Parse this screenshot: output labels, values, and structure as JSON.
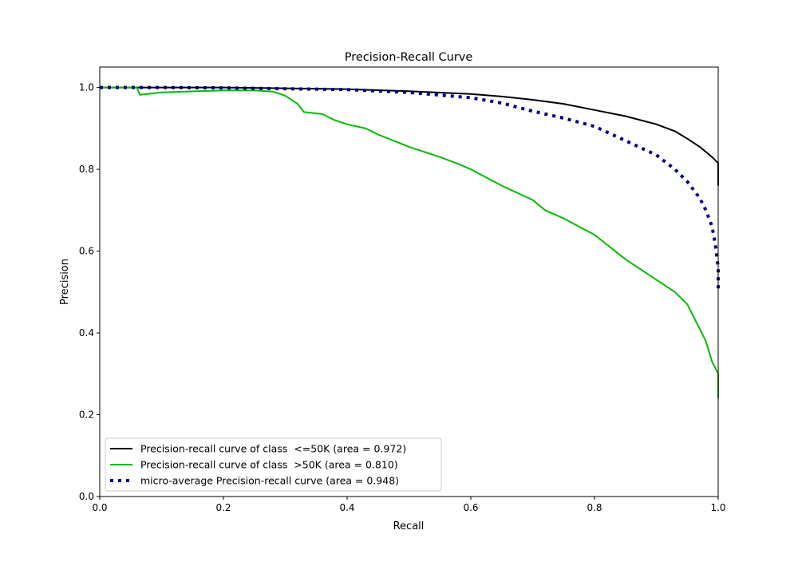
{
  "chart_data": {
    "type": "line",
    "title": "Precision-Recall Curve",
    "xlabel": "Recall",
    "ylabel": "Precision",
    "xlim": [
      0,
      1.0
    ],
    "ylim": [
      0,
      1.05
    ],
    "xticks": [
      "0.0",
      "0.2",
      "0.4",
      "0.6",
      "0.8",
      "1.0"
    ],
    "yticks": [
      "0.0",
      "0.2",
      "0.4",
      "0.6",
      "0.8",
      "1.0"
    ],
    "grid": false,
    "legend_position": "lower-left",
    "series": [
      {
        "name": "Precision-recall curve of class  <=50K (area = 0.972)",
        "color": "#000000",
        "style": "solid",
        "x": [
          0,
          0.1,
          0.2,
          0.3,
          0.4,
          0.5,
          0.6,
          0.65,
          0.7,
          0.75,
          0.8,
          0.85,
          0.9,
          0.93,
          0.95,
          0.97,
          0.99,
          1.0,
          1.0
        ],
        "y": [
          1.0,
          1.0,
          1.0,
          0.998,
          0.996,
          0.991,
          0.984,
          0.978,
          0.97,
          0.96,
          0.945,
          0.93,
          0.91,
          0.893,
          0.875,
          0.855,
          0.83,
          0.815,
          0.76
        ]
      },
      {
        "name": "Precision-recall curve of class  >50K (area = 0.810)",
        "color": "#00bb00",
        "style": "solid",
        "x": [
          0,
          0.06,
          0.065,
          0.1,
          0.2,
          0.25,
          0.28,
          0.3,
          0.32,
          0.33,
          0.36,
          0.38,
          0.4,
          0.43,
          0.45,
          0.5,
          0.55,
          0.58,
          0.6,
          0.65,
          0.7,
          0.72,
          0.75,
          0.8,
          0.85,
          0.9,
          0.93,
          0.95,
          0.97,
          0.98,
          0.99,
          1.0,
          1.0
        ],
        "y": [
          1.0,
          1.0,
          0.982,
          0.988,
          0.993,
          0.993,
          0.99,
          0.98,
          0.96,
          0.94,
          0.935,
          0.92,
          0.91,
          0.9,
          0.885,
          0.855,
          0.83,
          0.813,
          0.8,
          0.76,
          0.725,
          0.7,
          0.68,
          0.64,
          0.58,
          0.53,
          0.5,
          0.47,
          0.41,
          0.38,
          0.33,
          0.3,
          0.24
        ]
      },
      {
        "name": "micro-average Precision-recall curve (area = 0.948)",
        "color": "#000080",
        "style": "dotted",
        "x": [
          0,
          0.1,
          0.2,
          0.3,
          0.4,
          0.5,
          0.6,
          0.65,
          0.7,
          0.75,
          0.8,
          0.85,
          0.9,
          0.93,
          0.95,
          0.97,
          0.98,
          0.99,
          0.995,
          1.0,
          1.0
        ],
        "y": [
          1.0,
          1.0,
          0.999,
          0.997,
          0.995,
          0.988,
          0.975,
          0.962,
          0.942,
          0.925,
          0.905,
          0.87,
          0.835,
          0.8,
          0.77,
          0.73,
          0.7,
          0.66,
          0.62,
          0.56,
          0.5
        ]
      }
    ]
  }
}
